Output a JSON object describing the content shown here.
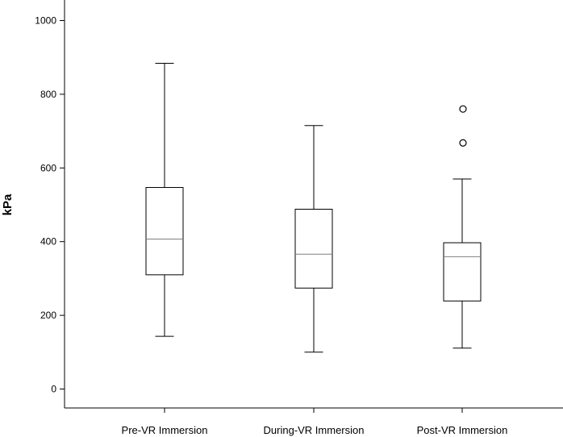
{
  "chart_data": {
    "type": "boxplot",
    "title": "",
    "xlabel": "",
    "ylabel": "kPa",
    "ylim": [
      0,
      1000
    ],
    "yticks": [
      0,
      200,
      400,
      600,
      800,
      1000
    ],
    "grid": false,
    "categories": [
      "Pre-VR Immersion",
      "During-VR Immersion",
      "Post-VR Immersion"
    ],
    "boxes": [
      {
        "min": 143,
        "q1": 310,
        "median": 407,
        "q3": 547,
        "max": 884,
        "outliers": []
      },
      {
        "min": 100,
        "q1": 274,
        "median": 366,
        "q3": 488,
        "max": 715,
        "outliers": []
      },
      {
        "min": 111,
        "q1": 239,
        "median": 359,
        "q3": 397,
        "max": 570,
        "outliers": [
          668,
          760
        ]
      }
    ],
    "colors": {
      "box_stroke": "#000000",
      "median": "#7f7f7f",
      "box_fill": "#ffffff"
    }
  }
}
